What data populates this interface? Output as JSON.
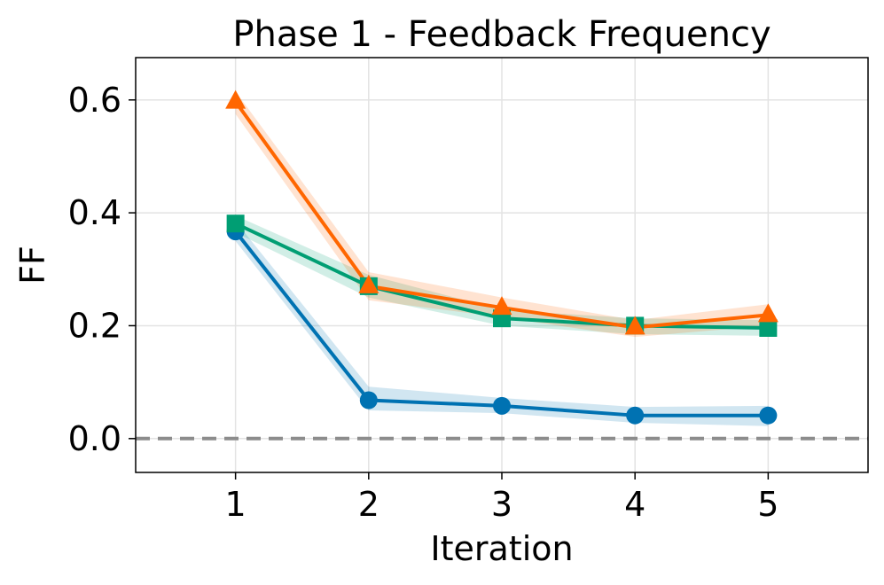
{
  "chart_data": {
    "type": "line",
    "title": "Phase 1 - Feedback Frequency",
    "xlabel": "Iteration",
    "ylabel": "FF",
    "xlim": [
      0.25,
      5.75
    ],
    "ylim": [
      -0.06,
      0.675
    ],
    "xticks": [
      1,
      2,
      3,
      4,
      5
    ],
    "xtick_labels": [
      "1",
      "2",
      "3",
      "4",
      "5"
    ],
    "yticks": [
      0.0,
      0.2,
      0.4,
      0.6
    ],
    "ytick_labels": [
      "0.0",
      "0.2",
      "0.4",
      "0.6"
    ],
    "grid": true,
    "legend": "none",
    "reference_line": {
      "y": 0.0,
      "style": "dashed",
      "color": "#8c8c8c"
    },
    "series": [
      {
        "name": "series-blue",
        "color": "#0072B2",
        "marker": "circle",
        "x": [
          1,
          2,
          3,
          4,
          5
        ],
        "y": [
          0.367,
          0.068,
          0.058,
          0.041,
          0.041
        ],
        "lower": [
          0.35,
          0.05,
          0.045,
          0.028,
          0.022
        ],
        "upper": [
          0.385,
          0.092,
          0.072,
          0.056,
          0.058
        ]
      },
      {
        "name": "series-green",
        "color": "#009E73",
        "marker": "square",
        "x": [
          1,
          2,
          3,
          4,
          5
        ],
        "y": [
          0.381,
          0.27,
          0.213,
          0.2,
          0.196
        ],
        "lower": [
          0.365,
          0.25,
          0.2,
          0.185,
          0.182
        ],
        "upper": [
          0.395,
          0.29,
          0.228,
          0.213,
          0.21
        ]
      },
      {
        "name": "series-orange",
        "color": "#FF6600",
        "marker": "triangle",
        "x": [
          1,
          2,
          3,
          4,
          5
        ],
        "y": [
          0.597,
          0.27,
          0.232,
          0.197,
          0.219
        ],
        "lower": [
          0.575,
          0.245,
          0.215,
          0.18,
          0.2
        ],
        "upper": [
          0.615,
          0.295,
          0.25,
          0.21,
          0.238
        ]
      }
    ]
  }
}
